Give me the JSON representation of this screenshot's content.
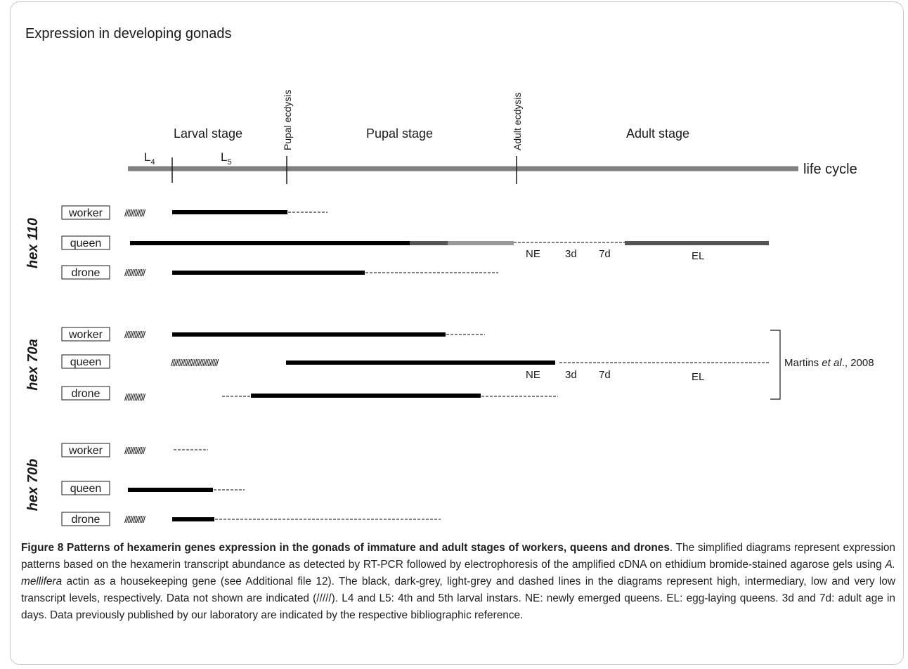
{
  "panel_title": "Expression in developing gonads",
  "timeline": {
    "life_cycle": "life cycle",
    "stages": [
      "Larval stage",
      "Pupal stage",
      "Adult stage"
    ],
    "events": [
      "Pupal ecdysis",
      "Adult ecdysis"
    ],
    "instars": [
      {
        "base": "L",
        "sub": "4"
      },
      {
        "base": "L",
        "sub": "5"
      }
    ]
  },
  "genes": [
    {
      "name": "hex 110",
      "castes": [
        "worker",
        "queen",
        "drone"
      ]
    },
    {
      "name": "hex 70a",
      "castes": [
        "worker",
        "queen",
        "drone"
      ]
    },
    {
      "name": "hex 70b",
      "castes": [
        "worker",
        "queen",
        "drone"
      ]
    }
  ],
  "adult_labels": {
    "ne": "NE",
    "d3": "3d",
    "d7": "7d",
    "el": "EL"
  },
  "not_shown_marks": {
    "short": "////////////",
    "long": "////////////////////////////"
  },
  "reference": {
    "author": "Martins ",
    "etal": "et al",
    "rest": "., 2008"
  },
  "legend_levels": {
    "high": "#000000",
    "intermediary": "#555555",
    "low": "#999999",
    "very_low": "dashed"
  },
  "caption": {
    "title": "Figure 8 Patterns of hexamerin genes expression in the gonads of immature and adult stages of workers, queens and drones",
    "p1": ". The simplified diagrams represent expression patterns based on the hexamerin transcript abundance as detected by RT-PCR followed by electrophoresis of the amplified cDNA on ethidium bromide-stained agarose gels using ",
    "species": "A. mellifera",
    "p2": " actin as a housekeeping gene (see Additional file 12). The black, dark-grey, light-grey and dashed lines in the diagrams represent high, intermediary, low and very low transcript levels, respectively. Data not shown are indicated (/////). L4 and L5: 4th and 5th larval instars. NE: newly emerged queens. EL: egg-laying queens. 3d and 7d: adult age in days. Data previously published by our laboratory are indicated by the respective bibliographic reference."
  }
}
